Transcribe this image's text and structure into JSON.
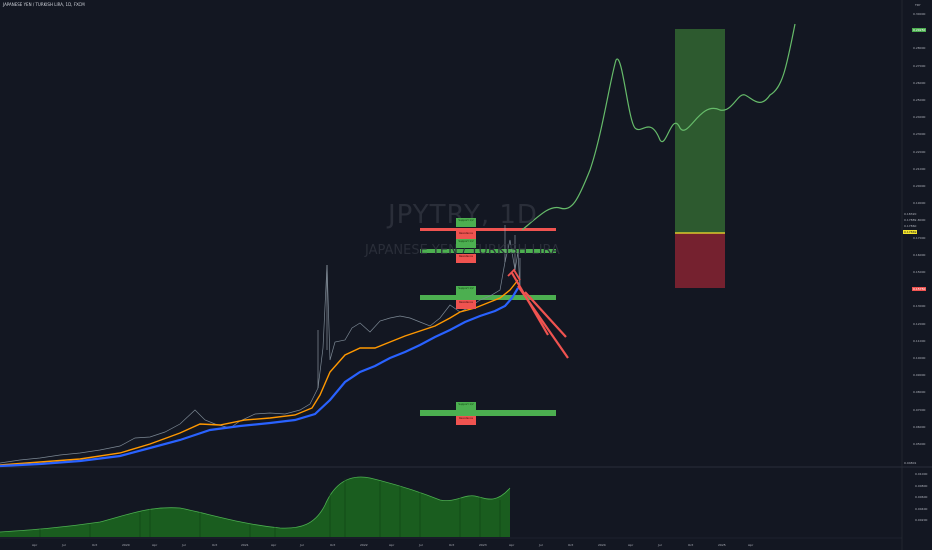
{
  "header": {
    "symbol_line": "JAPANESE YEN / TURKISH LIRA, 1D, FXCM",
    "watermark_symbol": "JPYTRY, 1D",
    "watermark_name": "JAPANESE YEN / TURKISH LIRA"
  },
  "price_axis": {
    "currency": "TRY",
    "ticks": [
      "0.30000",
      "0.29000",
      "0.28000",
      "0.27000",
      "0.26000",
      "0.25000",
      "0.24000",
      "0.23000",
      "0.22000",
      "0.21000",
      "0.20000",
      "0.19000",
      "0.18000",
      "0.17000",
      "0.16000",
      "0.15000",
      "0.14000",
      "0.13000",
      "0.12000",
      "0.11000",
      "0.10000",
      "0.09000",
      "0.08000",
      "0.07000",
      "0.06000",
      "0.05000"
    ],
    "tags": {
      "high": "0.18320",
      "ask": "0.17889",
      "last": "0.17860",
      "current": "0.17869",
      "stop": "0.15750",
      "low": "0.04801",
      "target": "0.29250"
    }
  },
  "volume_axis": {
    "ticks": [
      "0.01000",
      "0.00800",
      "0.00600",
      "0.00400",
      "0.00200"
    ]
  },
  "time_axis": {
    "labels": [
      "Apr",
      "Jul",
      "Oct",
      "2020",
      "Apr",
      "Jul",
      "Oct",
      "2021",
      "Apr",
      "Jul",
      "Oct",
      "2022",
      "Apr",
      "Jul",
      "Oct",
      "2023",
      "Apr",
      "Jul",
      "Oct",
      "2024",
      "Apr",
      "Jul",
      "Oct",
      "2025",
      "Apr"
    ]
  },
  "annotations": {
    "support_labels": [
      "Support 1/2",
      "Support 1/2",
      "Support 1/2",
      "Support 1/2"
    ],
    "resistance_labels": [
      "Resistance",
      "Resistance",
      "Resistance",
      "Resistance"
    ]
  },
  "colors": {
    "background": "#131722",
    "price_line": "#4caf50",
    "ema_fast": "#ff9800",
    "ema_slow": "#2962ff",
    "projection": "#66bb6a",
    "support": "#4caf50",
    "resistance": "#f05350",
    "profit_zone": "#2e5e30",
    "loss_zone": "#7a2230"
  }
}
